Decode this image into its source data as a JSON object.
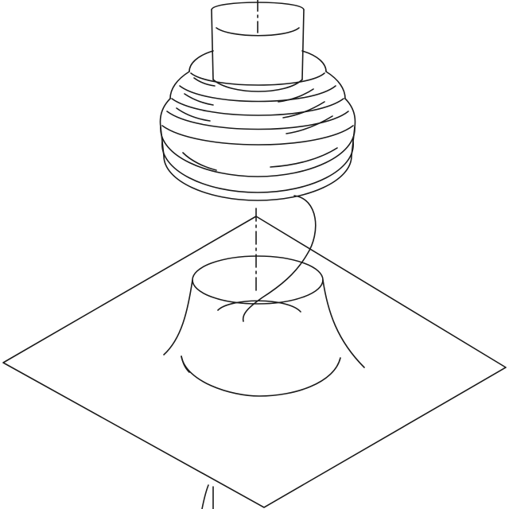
{
  "diagram": {
    "line_color": "#1a1a1a",
    "background_color": "#ffffff",
    "parts": [
      "pipe-collar-flashing",
      "flashing-base-plate",
      "flashing-cone",
      "axis-centerline",
      "sealant-bead"
    ]
  }
}
